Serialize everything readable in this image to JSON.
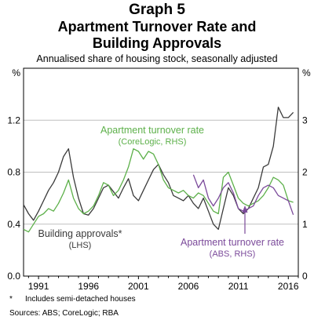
{
  "header": {
    "graph_number": "Graph 5",
    "title_line1": "Apartment Turnover Rate and",
    "title_line2": "Building Approvals",
    "subtitle": "Annualised share of housing stock, seasonally adjusted"
  },
  "footer": {
    "footnote_marker": "*",
    "footnote_text": "Includes semi-detached houses",
    "sources": "Sources: ABS; CoreLogic; RBA"
  },
  "colors": {
    "building_approvals": "#3a3a3a",
    "corelogic": "#5db04a",
    "abs": "#7b4a9a",
    "grid": "#bfbfbf"
  },
  "chart_data": {
    "type": "line",
    "x_range": [
      1989.5,
      2017.0
    ],
    "x_ticks": [
      1991,
      1996,
      2001,
      2006,
      2011,
      2016
    ],
    "left_axis": {
      "unit": "%",
      "range": [
        0,
        1.6
      ],
      "ticks": [
        0.0,
        0.4,
        0.8,
        1.2
      ]
    },
    "right_axis": {
      "unit": "%",
      "range": [
        0,
        4
      ],
      "ticks": [
        0,
        1,
        2,
        3
      ]
    },
    "grid": true,
    "annotations": [
      {
        "series": "building_approvals",
        "lines": [
          "Building approvals*",
          "(LHS)"
        ]
      },
      {
        "series": "corelogic",
        "lines": [
          "Apartment turnover rate",
          "(CoreLogic, RHS)"
        ]
      },
      {
        "series": "abs",
        "lines": [
          "Apartment turnover rate",
          "(ABS, RHS)"
        ]
      }
    ],
    "series": [
      {
        "key": "building_approvals",
        "axis": "left",
        "x": [
          1989.5,
          1990.0,
          1990.5,
          1991.0,
          1991.5,
          1992.0,
          1992.5,
          1993.0,
          1993.5,
          1994.0,
          1994.5,
          1995.0,
          1995.5,
          1996.0,
          1996.5,
          1997.0,
          1997.5,
          1998.0,
          1998.5,
          1999.0,
          1999.5,
          2000.0,
          2000.5,
          2001.0,
          2001.5,
          2002.0,
          2002.5,
          2003.0,
          2003.5,
          2004.0,
          2004.5,
          2005.0,
          2005.5,
          2006.0,
          2006.5,
          2007.0,
          2007.5,
          2008.0,
          2008.5,
          2009.0,
          2009.5,
          2010.0,
          2010.5,
          2011.0,
          2011.5,
          2012.0,
          2012.5,
          2013.0,
          2013.5,
          2014.0,
          2014.5,
          2015.0,
          2015.5,
          2016.0,
          2016.5
        ],
        "y": [
          0.55,
          0.48,
          0.43,
          0.5,
          0.58,
          0.66,
          0.72,
          0.8,
          0.92,
          0.98,
          0.76,
          0.6,
          0.48,
          0.47,
          0.52,
          0.6,
          0.68,
          0.7,
          0.65,
          0.6,
          0.68,
          0.75,
          0.62,
          0.58,
          0.66,
          0.74,
          0.82,
          0.86,
          0.78,
          0.72,
          0.62,
          0.6,
          0.58,
          0.62,
          0.56,
          0.52,
          0.6,
          0.5,
          0.4,
          0.36,
          0.52,
          0.68,
          0.62,
          0.52,
          0.48,
          0.52,
          0.6,
          0.68,
          0.84,
          0.86,
          1.0,
          1.3,
          1.22,
          1.22,
          1.26
        ]
      },
      {
        "key": "corelogic",
        "axis": "right",
        "x": [
          1989.5,
          1990.0,
          1990.5,
          1991.0,
          1991.5,
          1992.0,
          1992.5,
          1993.0,
          1993.5,
          1994.0,
          1994.5,
          1995.0,
          1995.5,
          1996.0,
          1996.5,
          1997.0,
          1997.5,
          1998.0,
          1998.5,
          1999.0,
          1999.5,
          2000.0,
          2000.5,
          2001.0,
          2001.5,
          2002.0,
          2002.5,
          2003.0,
          2003.5,
          2004.0,
          2004.5,
          2005.0,
          2005.5,
          2006.0,
          2006.5,
          2007.0,
          2007.5,
          2008.0,
          2008.5,
          2009.0,
          2009.5,
          2010.0,
          2010.5,
          2011.0,
          2011.5,
          2012.0,
          2012.5,
          2013.0,
          2013.5,
          2014.0,
          2014.5,
          2015.0,
          2015.5,
          2016.0,
          2016.5
        ],
        "y": [
          0.9,
          0.85,
          1.0,
          1.15,
          1.2,
          1.3,
          1.25,
          1.4,
          1.6,
          1.85,
          1.5,
          1.3,
          1.2,
          1.25,
          1.35,
          1.55,
          1.8,
          1.75,
          1.55,
          1.65,
          1.85,
          2.1,
          2.45,
          2.4,
          2.25,
          2.4,
          2.35,
          2.15,
          1.85,
          1.7,
          1.65,
          1.6,
          1.65,
          1.55,
          1.5,
          1.6,
          1.55,
          1.4,
          1.25,
          1.2,
          1.9,
          2.0,
          1.75,
          1.5,
          1.4,
          1.35,
          1.4,
          1.45,
          1.55,
          1.7,
          1.9,
          1.85,
          1.75,
          1.45,
          1.42
        ]
      },
      {
        "key": "abs",
        "axis": "right",
        "x": [
          2006.5,
          2007.0,
          2007.5,
          2008.0,
          2008.5,
          2009.0,
          2009.5,
          2010.0,
          2010.5,
          2011.0,
          2011.5,
          2012.0,
          2012.5,
          2013.0,
          2013.5,
          2014.0,
          2014.5,
          2015.0,
          2015.5,
          2016.0,
          2016.5
        ],
        "y": [
          1.95,
          1.7,
          1.85,
          1.5,
          1.35,
          1.5,
          1.7,
          1.8,
          1.6,
          1.3,
          1.25,
          1.3,
          1.35,
          1.55,
          1.7,
          1.75,
          1.7,
          1.55,
          1.5,
          1.45,
          1.18
        ]
      }
    ]
  }
}
